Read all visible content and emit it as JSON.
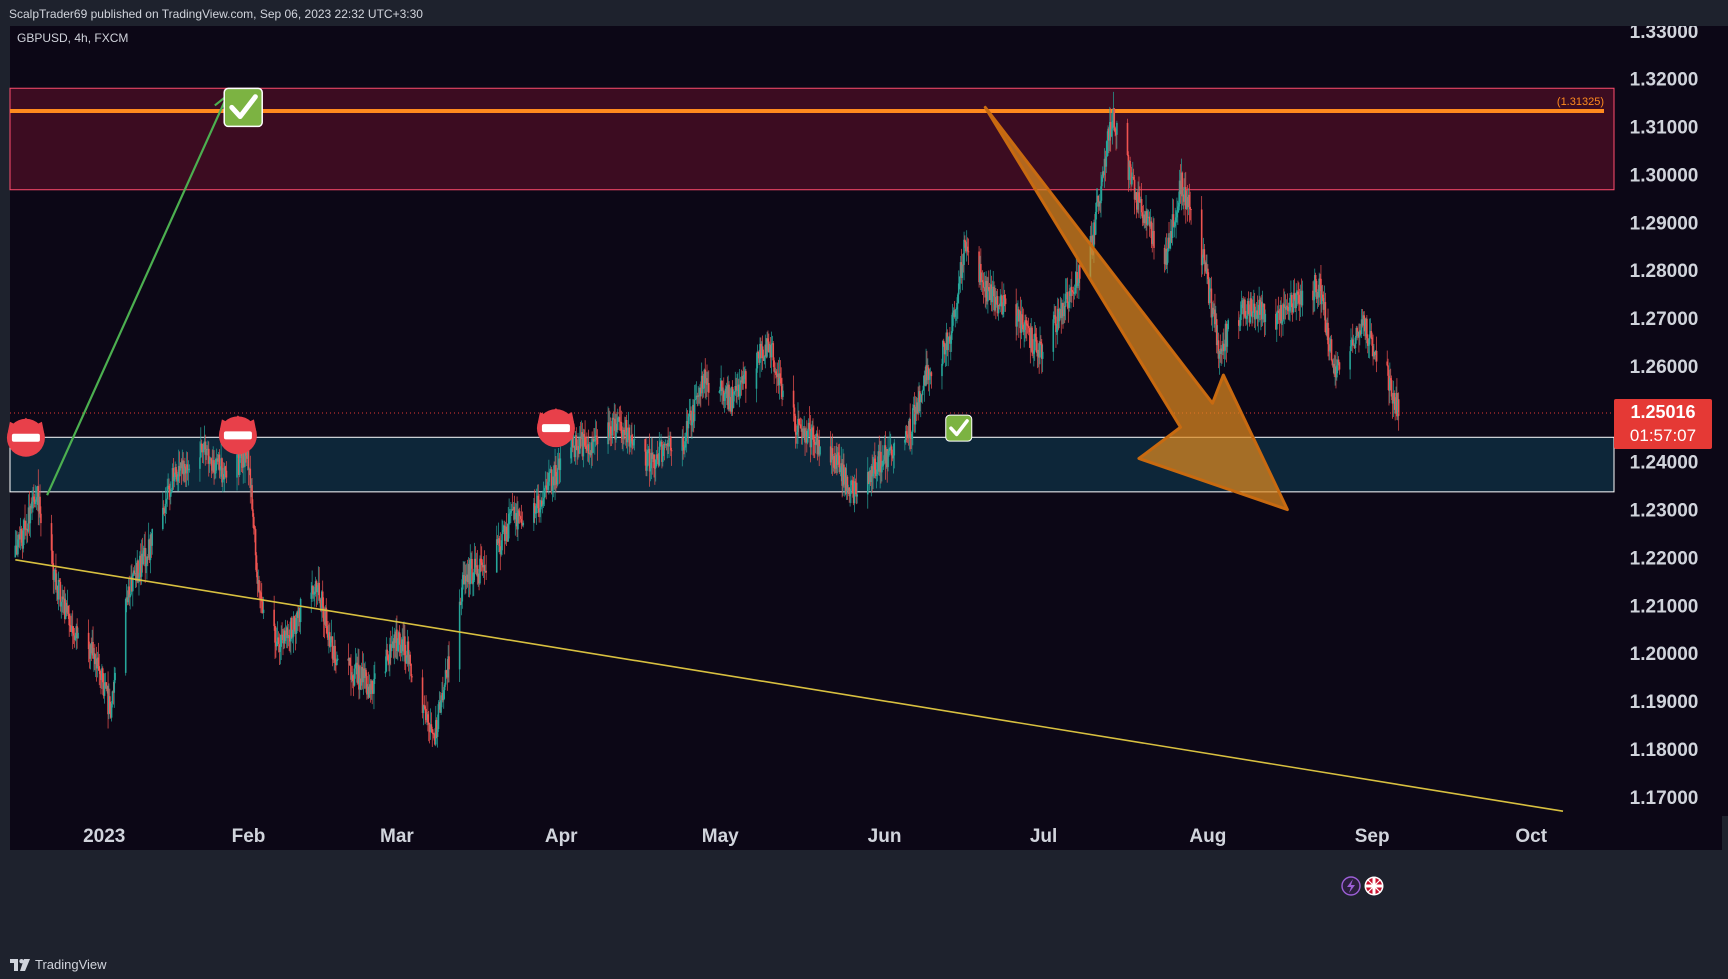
{
  "header": {
    "published_line": "ScalpTrader69 published on TradingView.com, Sep 06, 2023 22:32 UTC+3:30"
  },
  "legend": {
    "symbol_line": "GBPUSD, 4h, FXCM"
  },
  "footer": {
    "brand": "TradingView",
    "logo_icon": "tradingview-logo-icon"
  },
  "colors": {
    "background": "#0c0716",
    "frame": "#1e222d",
    "supply_zone": "#5a1028",
    "demand_zone": "#0e2c40",
    "resistance_line": "#ff8a1e",
    "trendline": "#d8c040",
    "up_arrow": "#4caf50",
    "down_arrow": "#e08a1e",
    "candle_up": "#26a69a",
    "candle_down": "#ef5350",
    "price_label_bg": "#e53935",
    "check_green": "#7cb342"
  },
  "chart_data": {
    "type": "candlestick",
    "symbol": "GBPUSD",
    "interval": "4h",
    "source": "FXCM",
    "x_ticks": [
      "2023",
      "Feb",
      "Mar",
      "Apr",
      "May",
      "Jun",
      "Jul",
      "Aug",
      "Sep",
      "Oct"
    ],
    "x_tick_dates": [
      "2023-01-01",
      "2023-02-01",
      "2023-03-01",
      "2023-04-01",
      "2023-05-01",
      "2023-06-01",
      "2023-07-01",
      "2023-08-01",
      "2023-09-01",
      "2023-10-01"
    ],
    "y_ticks": [
      "1.33000",
      "1.32000",
      "1.31000",
      "1.30000",
      "1.29000",
      "1.28000",
      "1.27000",
      "1.26000",
      "1.25000",
      "1.24000",
      "1.23000",
      "1.22000",
      "1.21000",
      "1.20000",
      "1.19000",
      "1.18000",
      "1.17000"
    ],
    "ylim": [
      1.166,
      1.331
    ],
    "grid": false,
    "current_price": "1.25016",
    "countdown": "01:57:07",
    "resistance_label": "(1.31325)",
    "resistance_level": 1.31325,
    "zones": [
      {
        "name": "supply",
        "top": 1.318,
        "bottom": 1.2968
      },
      {
        "name": "demand",
        "top": 1.2451,
        "bottom": 1.2337
      }
    ],
    "trendline": {
      "start": {
        "date": "2022-12-19",
        "price": 1.2195
      },
      "end": {
        "date": "2023-10-07",
        "price": 1.167
      }
    },
    "up_arrow": {
      "start": {
        "date": "2022-12-25",
        "price": 1.233
      },
      "end": {
        "date": "2023-01-28",
        "price": 1.3165
      }
    },
    "down_arrow": {
      "start": {
        "date": "2023-06-20",
        "price": 1.314
      },
      "end": {
        "date": "2023-08-16",
        "price": 1.23
      }
    },
    "close_path": [
      {
        "date": "2022-12-19",
        "price": 1.22
      },
      {
        "date": "2022-12-23",
        "price": 1.233
      },
      {
        "date": "2022-12-28",
        "price": 1.209
      },
      {
        "date": "2023-01-03",
        "price": 1.199
      },
      {
        "date": "2023-01-06",
        "price": 1.188
      },
      {
        "date": "2023-01-09",
        "price": 1.213
      },
      {
        "date": "2023-01-13",
        "price": 1.221
      },
      {
        "date": "2023-01-18",
        "price": 1.237
      },
      {
        "date": "2023-01-23",
        "price": 1.243
      },
      {
        "date": "2023-01-27",
        "price": 1.238
      },
      {
        "date": "2023-02-01",
        "price": 1.241
      },
      {
        "date": "2023-02-03",
        "price": 1.212
      },
      {
        "date": "2023-02-07",
        "price": 1.201
      },
      {
        "date": "2023-02-14",
        "price": 1.215
      },
      {
        "date": "2023-02-17",
        "price": 1.199
      },
      {
        "date": "2023-02-24",
        "price": 1.193
      },
      {
        "date": "2023-03-01",
        "price": 1.203
      },
      {
        "date": "2023-03-03",
        "price": 1.2
      },
      {
        "date": "2023-03-08",
        "price": 1.182
      },
      {
        "date": "2023-03-14",
        "price": 1.217
      },
      {
        "date": "2023-03-17",
        "price": 1.217
      },
      {
        "date": "2023-03-23",
        "price": 1.228
      },
      {
        "date": "2023-03-28",
        "price": 1.232
      },
      {
        "date": "2023-04-03",
        "price": 1.243
      },
      {
        "date": "2023-04-07",
        "price": 1.244
      },
      {
        "date": "2023-04-12",
        "price": 1.248
      },
      {
        "date": "2023-04-17",
        "price": 1.24
      },
      {
        "date": "2023-04-24",
        "price": 1.244
      },
      {
        "date": "2023-04-28",
        "price": 1.257
      },
      {
        "date": "2023-05-03",
        "price": 1.253
      },
      {
        "date": "2023-05-10",
        "price": 1.265
      },
      {
        "date": "2023-05-15",
        "price": 1.248
      },
      {
        "date": "2023-05-22",
        "price": 1.242
      },
      {
        "date": "2023-05-26",
        "price": 1.233
      },
      {
        "date": "2023-05-31",
        "price": 1.24
      },
      {
        "date": "2023-06-05",
        "price": 1.244
      },
      {
        "date": "2023-06-09",
        "price": 1.258
      },
      {
        "date": "2023-06-13",
        "price": 1.265
      },
      {
        "date": "2023-06-16",
        "price": 1.284
      },
      {
        "date": "2023-06-21",
        "price": 1.275
      },
      {
        "date": "2023-06-26",
        "price": 1.27
      },
      {
        "date": "2023-06-30",
        "price": 1.263
      },
      {
        "date": "2023-07-05",
        "price": 1.272
      },
      {
        "date": "2023-07-10",
        "price": 1.285
      },
      {
        "date": "2023-07-14",
        "price": 1.313
      },
      {
        "date": "2023-07-19",
        "price": 1.293
      },
      {
        "date": "2023-07-24",
        "price": 1.283
      },
      {
        "date": "2023-07-27",
        "price": 1.298
      },
      {
        "date": "2023-07-31",
        "price": 1.283
      },
      {
        "date": "2023-08-03",
        "price": 1.264
      },
      {
        "date": "2023-08-08",
        "price": 1.272
      },
      {
        "date": "2023-08-14",
        "price": 1.27
      },
      {
        "date": "2023-08-18",
        "price": 1.274
      },
      {
        "date": "2023-08-22",
        "price": 1.277
      },
      {
        "date": "2023-08-25",
        "price": 1.258
      },
      {
        "date": "2023-08-30",
        "price": 1.269
      },
      {
        "date": "2023-09-04",
        "price": 1.258
      },
      {
        "date": "2023-09-06",
        "price": 1.2502
      }
    ],
    "markers": [
      {
        "type": "sell",
        "date": "2022-12-21",
        "price": 1.245
      },
      {
        "type": "sell",
        "date": "2023-01-30",
        "price": 1.2455
      },
      {
        "type": "sell",
        "date": "2023-03-31",
        "price": 1.247
      },
      {
        "type": "check",
        "date": "2023-01-31",
        "price": 1.314
      },
      {
        "type": "check",
        "date": "2023-06-15",
        "price": 1.247
      }
    ]
  }
}
